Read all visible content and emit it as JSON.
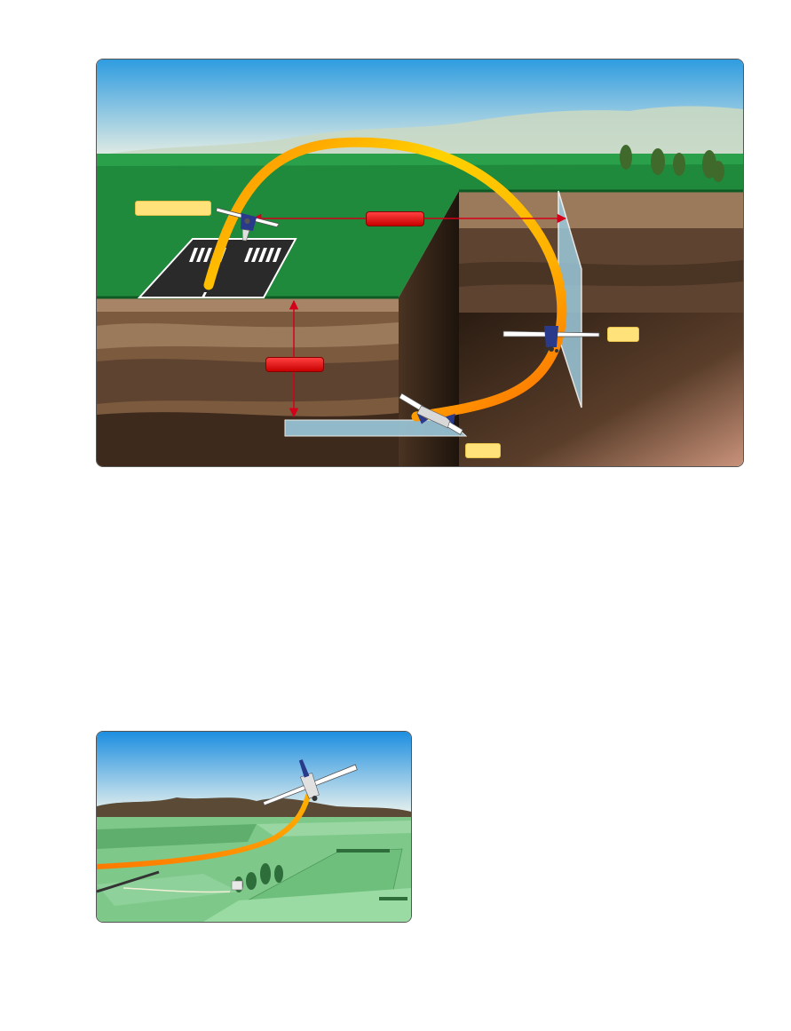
{
  "figure_top": {
    "icons": [
      "airplane-icon",
      "runway-icon",
      "trees-icon"
    ],
    "colors": {
      "sky_top": "#2f9ce0",
      "ground_green": "#1f8a3c",
      "soil_brown": "#7b5a3e",
      "flight_path": "#ff9a1a",
      "reference_plane": "#9cc9dc",
      "dimension_arrow": "#d4001a",
      "label_yellow": "#ffe27a",
      "label_red": "#e01010"
    }
  },
  "figure_bottom": {
    "icons": [
      "airplane-icon",
      "fields-icon",
      "mountains-icon"
    ],
    "colors": {
      "sky_top": "#1d8ee0",
      "mountains": "#5a4a36",
      "fields": "#7ec98a",
      "flight_path": "#ff9a1a"
    }
  }
}
